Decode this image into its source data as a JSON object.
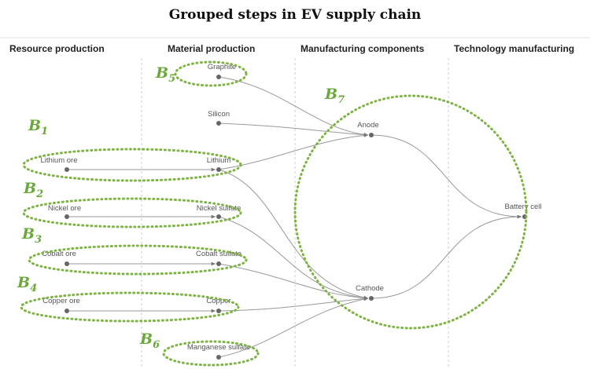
{
  "title": "Grouped steps in EV supply chain",
  "columns": [
    "Resource production",
    "Material production",
    "Manufacturing components",
    "Technology manufacturing"
  ],
  "nodes": [
    "Graphite",
    "Silicon",
    "Lithium ore",
    "Lithium",
    "Nickel ore",
    "Nickel sulfate",
    "Cobalt ore",
    "Cobalt sulfate",
    "Copper ore",
    "Copper",
    "Manganese sulfate",
    "Anode",
    "Cathode",
    "Battery cell"
  ],
  "groups": [
    {
      "letter": "B",
      "index": "1"
    },
    {
      "letter": "B",
      "index": "2"
    },
    {
      "letter": "B",
      "index": "3"
    },
    {
      "letter": "B",
      "index": "4"
    },
    {
      "letter": "B",
      "index": "5"
    },
    {
      "letter": "B",
      "index": "6"
    },
    {
      "letter": "B",
      "index": "7"
    }
  ]
}
